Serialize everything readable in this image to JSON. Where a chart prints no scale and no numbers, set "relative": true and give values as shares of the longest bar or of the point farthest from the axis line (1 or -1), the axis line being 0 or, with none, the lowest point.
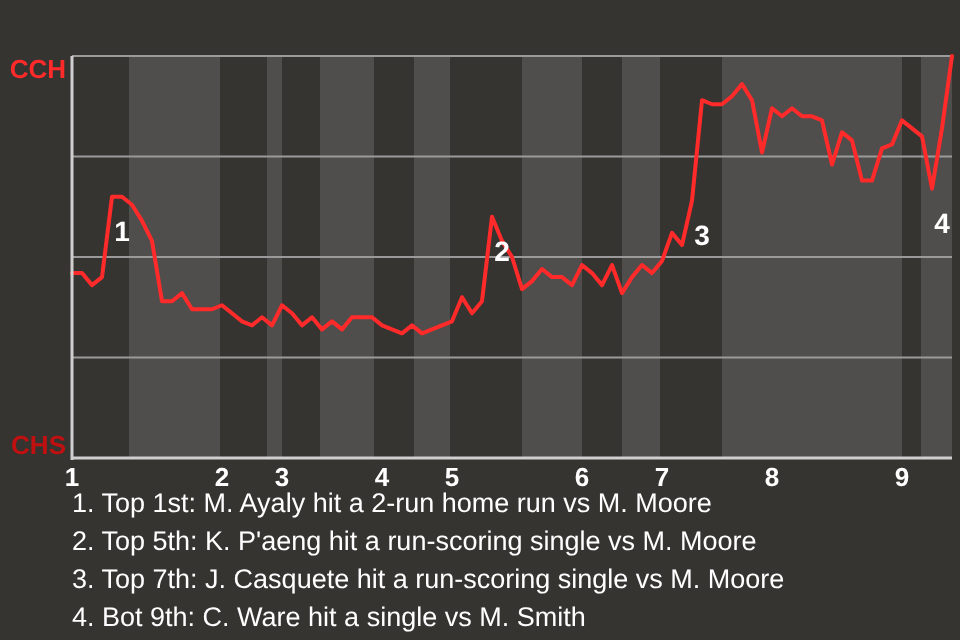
{
  "chart_data": {
    "type": "line",
    "relative": true,
    "grid": "y",
    "marker": "none",
    "line_style": "solid",
    "categories": [
      "1",
      null,
      null,
      null,
      null,
      null,
      null,
      null,
      null,
      null,
      null,
      null,
      null,
      null,
      null,
      "2",
      null,
      null,
      null,
      null,
      null,
      "3",
      null,
      null,
      null,
      null,
      null,
      null,
      null,
      null,
      null,
      "4",
      null,
      null,
      null,
      null,
      null,
      null,
      "5",
      null,
      null,
      null,
      null,
      null,
      null,
      null,
      null,
      null,
      null,
      null,
      null,
      "6",
      null,
      null,
      null,
      null,
      null,
      null,
      null,
      "7",
      null,
      null,
      null,
      null,
      null,
      null,
      null,
      null,
      null,
      null,
      "8",
      null,
      null,
      null,
      null,
      null,
      null,
      null,
      null,
      null,
      null,
      null,
      null,
      "9",
      null,
      null,
      null,
      null,
      null
    ],
    "series": [
      {
        "color": "#ff2a2a",
        "values": [
          0.46,
          0.46,
          0.43,
          0.45,
          0.65,
          0.65,
          0.63,
          0.59,
          0.54,
          0.39,
          0.39,
          0.41,
          0.37,
          0.37,
          0.37,
          0.38,
          0.36,
          0.34,
          0.33,
          0.35,
          0.33,
          0.38,
          0.36,
          0.33,
          0.35,
          0.32,
          0.34,
          0.32,
          0.35,
          0.35,
          0.35,
          0.33,
          0.32,
          0.31,
          0.33,
          0.31,
          0.32,
          0.33,
          0.34,
          0.4,
          0.36,
          0.39,
          0.6,
          0.54,
          0.5,
          0.42,
          0.44,
          0.47,
          0.45,
          0.45,
          0.43,
          0.48,
          0.46,
          0.43,
          0.48,
          0.41,
          0.45,
          0.48,
          0.46,
          0.49,
          0.56,
          0.53,
          0.64,
          0.89,
          0.88,
          0.88,
          0.9,
          0.93,
          0.89,
          0.76,
          0.87,
          0.85,
          0.87,
          0.85,
          0.85,
          0.84,
          0.73,
          0.81,
          0.79,
          0.69,
          0.69,
          0.77,
          0.78,
          0.84,
          0.82,
          0.8,
          0.67,
          0.82,
          1
        ]
      }
    ],
    "annotations": [
      "CCH",
      "CHS",
      {
        "text": "1",
        "y": 0.65
      },
      {
        "text": "2",
        "y": 0.6
      },
      {
        "text": "3",
        "y": 0.64
      },
      {
        "text": "4",
        "y": 0.67
      },
      "1. Top 1st: M. Ayaly hit a 2-run home run vs M. Moore",
      "2. Top 5th: K. P'aeng hit a run-scoring single vs M. Moore",
      "3. Top 7th: J. Casquete hit a run-scoring single vs M. Moore",
      "4. Bot 9th: C. Ware hit a single vs M. Smith"
    ]
  }
}
